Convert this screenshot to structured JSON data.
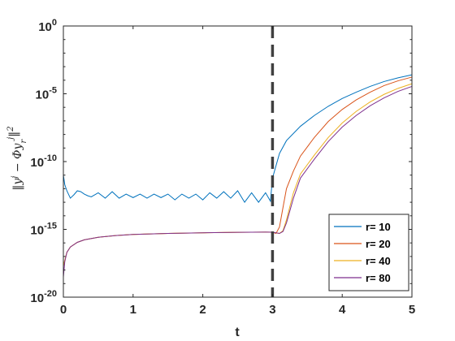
{
  "chart_data": {
    "type": "line",
    "title": "",
    "xlabel": "t",
    "ylabel": "||y^j − Φ y_r^j||^2",
    "yscale": "log",
    "xlim": [
      0,
      5
    ],
    "ylim": [
      1e-20,
      1
    ],
    "xticks": [
      0,
      1,
      2,
      3,
      4,
      5
    ],
    "xtick_labels": [
      "0",
      "1",
      "2",
      "3",
      "4",
      "5"
    ],
    "ytick_labels": [
      {
        "base": "10",
        "exp": "-20"
      },
      {
        "base": "10",
        "exp": "-15"
      },
      {
        "base": "10",
        "exp": "-10"
      },
      {
        "base": "10",
        "exp": "-5"
      },
      {
        "base": "10",
        "exp": "0"
      }
    ],
    "grid": false,
    "legend_position": "bottom-right",
    "vline": {
      "x": 3,
      "style": "dashed",
      "color": "#404040"
    },
    "series": [
      {
        "name": "r= 10",
        "color": "#0072BD",
        "x": [
          0,
          0.02,
          0.05,
          0.1,
          0.15,
          0.2,
          0.25,
          0.3,
          0.35,
          0.4,
          0.5,
          0.6,
          0.7,
          0.8,
          0.9,
          1.0,
          1.1,
          1.2,
          1.3,
          1.4,
          1.5,
          1.6,
          1.7,
          1.8,
          1.9,
          2.0,
          2.1,
          2.2,
          2.3,
          2.4,
          2.5,
          2.6,
          2.7,
          2.8,
          2.9,
          2.97,
          3.0,
          3.1,
          3.2,
          3.4,
          3.6,
          3.8,
          4.0,
          4.2,
          4.4,
          4.6,
          4.8,
          5.0
        ],
        "y": [
          1e-11,
          2e-12,
          7e-13,
          2e-13,
          3.5e-13,
          7e-13,
          6e-13,
          4e-13,
          3e-13,
          2.5e-13,
          5e-13,
          2e-13,
          6e-13,
          2e-13,
          4e-13,
          2.2e-13,
          4e-13,
          2e-13,
          4e-13,
          2.2e-13,
          4e-13,
          1.5e-13,
          4e-13,
          2e-13,
          4e-13,
          1.5e-13,
          5e-13,
          2e-13,
          6e-13,
          2e-13,
          7e-13,
          1e-13,
          5e-13,
          1e-13,
          5e-13,
          1.2e-13,
          6e-12,
          4e-10,
          3.5e-09,
          4e-08,
          2.5e-07,
          1.2e-06,
          4.5e-06,
          1.3e-05,
          3.5e-05,
          8e-05,
          0.00015,
          0.00025
        ]
      },
      {
        "name": "r= 20",
        "color": "#D95319",
        "x": [
          0,
          0.02,
          0.05,
          0.1,
          0.2,
          0.3,
          0.5,
          0.75,
          1.0,
          1.5,
          2.0,
          2.5,
          2.9,
          3.0,
          3.05,
          3.1,
          3.15,
          3.2,
          3.3,
          3.4,
          3.6,
          3.8,
          4.0,
          4.2,
          4.4,
          4.6,
          4.8,
          5.0
        ],
        "y": [
          2e-18,
          5e-18,
          2e-17,
          5e-17,
          1.1e-16,
          1.7e-16,
          2.6e-16,
          3.5e-16,
          4.2e-16,
          5e-16,
          5.6e-16,
          6.1e-16,
          6.3e-16,
          6.2e-16,
          5e-16,
          1.5e-15,
          4e-14,
          1e-12,
          2e-11,
          2.5e-10,
          6e-09,
          9e-08,
          7e-07,
          3.5e-06,
          1.3e-05,
          4e-05,
          9e-05,
          0.00017
        ]
      },
      {
        "name": "r= 40",
        "color": "#EDB120",
        "x": [
          0,
          0.02,
          0.05,
          0.1,
          0.2,
          0.3,
          0.5,
          0.75,
          1.0,
          1.5,
          2.0,
          2.5,
          2.9,
          3.0,
          3.1,
          3.15,
          3.2,
          3.3,
          3.4,
          3.6,
          3.8,
          4.0,
          4.2,
          4.4,
          4.6,
          4.8,
          5.0
        ],
        "y": [
          2e-18,
          5e-18,
          2e-17,
          5e-17,
          1.1e-16,
          1.7e-16,
          2.6e-16,
          3.5e-16,
          4.2e-16,
          5e-16,
          5.6e-16,
          6.1e-16,
          6.3e-16,
          6.2e-16,
          5e-16,
          8e-16,
          5e-15,
          5e-13,
          1.2e-11,
          3e-10,
          6e-09,
          7e-08,
          5e-07,
          2.5e-06,
          9e-06,
          2.5e-05,
          5.5e-05
        ]
      },
      {
        "name": "r= 80",
        "color": "#7E2F8E",
        "x": [
          0,
          0.02,
          0.05,
          0.1,
          0.2,
          0.3,
          0.5,
          0.75,
          1.0,
          1.5,
          2.0,
          2.5,
          2.9,
          3.0,
          3.1,
          3.15,
          3.2,
          3.3,
          3.4,
          3.6,
          3.8,
          4.0,
          4.2,
          4.4,
          4.6,
          4.8,
          5.0
        ],
        "y": [
          3e-19,
          4e-18,
          2e-17,
          5e-17,
          1.1e-16,
          1.7e-16,
          2.6e-16,
          3.5e-16,
          4.2e-16,
          5e-16,
          5.6e-16,
          6.1e-16,
          6.3e-16,
          6.2e-16,
          5e-16,
          7e-16,
          3e-15,
          2e-13,
          6e-12,
          1.5e-10,
          3e-09,
          3.5e-08,
          2.5e-07,
          1.3e-06,
          5e-06,
          1.5e-05,
          3.5e-05
        ]
      }
    ]
  }
}
